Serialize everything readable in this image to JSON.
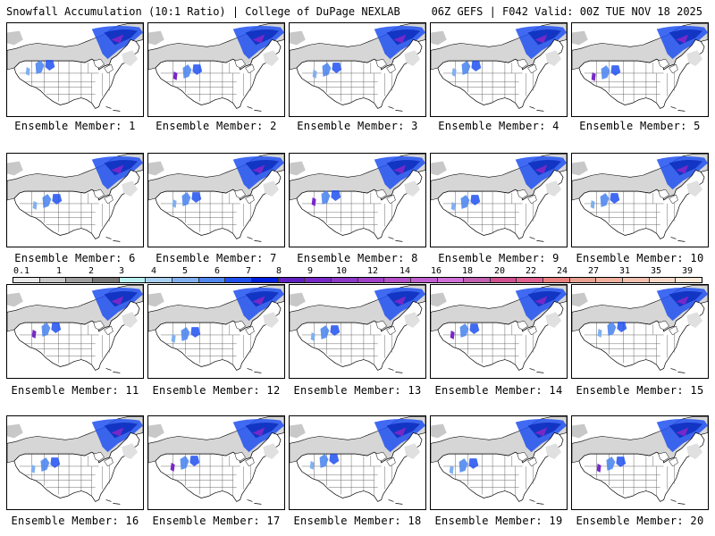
{
  "header": {
    "title": "Snowfall Accumulation (10:1 Ratio) | College of DuPage NEXLAB",
    "run_info": "06Z GEFS | F042 Valid: 00Z TUE NOV 18 2025"
  },
  "caption_prefix": "Ensemble Member: ",
  "members": [
    {
      "label": "Ensemble Member: 1"
    },
    {
      "label": "Ensemble Member: 2"
    },
    {
      "label": "Ensemble Member: 3"
    },
    {
      "label": "Ensemble Member: 4"
    },
    {
      "label": "Ensemble Member: 5"
    },
    {
      "label": "Ensemble Member: 6"
    },
    {
      "label": "Ensemble Member: 7"
    },
    {
      "label": "Ensemble Member: 8"
    },
    {
      "label": "Ensemble Member: 9"
    },
    {
      "label": "Ensemble Member: 10"
    },
    {
      "label": "Ensemble Member: 11"
    },
    {
      "label": "Ensemble Member: 12"
    },
    {
      "label": "Ensemble Member: 13"
    },
    {
      "label": "Ensemble Member: 14"
    },
    {
      "label": "Ensemble Member: 15"
    },
    {
      "label": "Ensemble Member: 16"
    },
    {
      "label": "Ensemble Member: 17"
    },
    {
      "label": "Ensemble Member: 18"
    },
    {
      "label": "Ensemble Member: 19"
    },
    {
      "label": "Ensemble Member: 20"
    }
  ],
  "colorbar": {
    "labels": [
      "0.1",
      "1",
      "2",
      "3",
      "4",
      "5",
      "6",
      "7",
      "8",
      "9",
      "10",
      "12",
      "14",
      "16",
      "18",
      "20",
      "22",
      "24",
      "27",
      "31",
      "35",
      "39"
    ],
    "colors": [
      "#e8e8e8",
      "#c8c8c8",
      "#a0a0a0",
      "#787878",
      "#b8f0f0",
      "#a8d0f0",
      "#80b0f0",
      "#5088f0",
      "#2050f0",
      "#0020e0",
      "#6020c0",
      "#7828c8",
      "#8c38c8",
      "#a040c8",
      "#b450c8",
      "#c060d0",
      "#d070d8",
      "#c060b0",
      "#d05090",
      "#e06090",
      "#e88080",
      "#e8a090",
      "#f0b0a0",
      "#f0c0b0",
      "#f8d8c8",
      "#fce8d8"
    ]
  },
  "colors": {
    "border": "#000000",
    "snow_light": "#c8c8c8",
    "snow_blue": "#2050f0",
    "snow_purple": "#7828c8"
  }
}
